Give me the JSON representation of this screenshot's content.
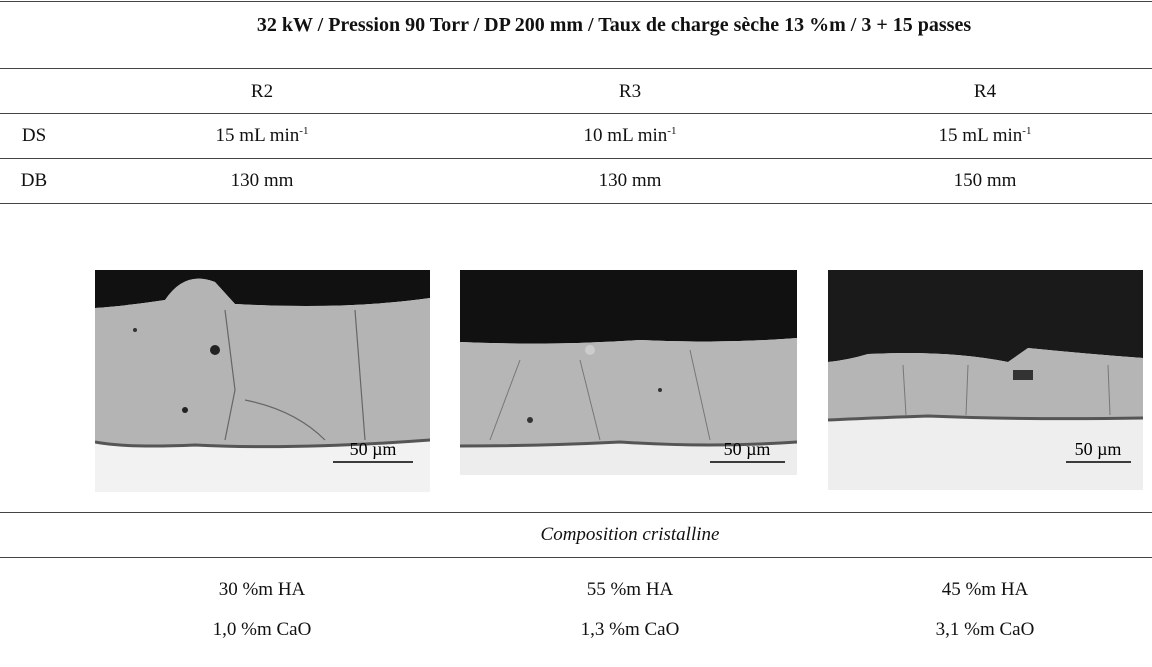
{
  "header": {
    "title": "32 kW / Pression 90 Torr  / DP  200 mm  / Taux de charge sèche 13 %m  / 3 + 15 passes"
  },
  "table": {
    "columns": [
      "R2",
      "R3",
      "R4"
    ],
    "rows": [
      {
        "label": "DS",
        "cells": [
          {
            "text": "15 mL min",
            "sup": "-1"
          },
          {
            "text": "10 mL min",
            "sup": "-1"
          },
          {
            "text": "15 mL min",
            "sup": "-1"
          }
        ]
      },
      {
        "label": "DB",
        "cells": [
          "130 mm",
          "130 mm",
          "150 mm"
        ]
      }
    ],
    "images": [
      {
        "scale": "50 µm"
      },
      {
        "scale": "50 µm"
      },
      {
        "scale": "50 µm"
      }
    ],
    "section": "Composition cristalline",
    "composition": [
      [
        "30 %m HA",
        "55 %m HA",
        "45 %m HA"
      ],
      [
        "1,0 %m CaO",
        "1,3 %m CaO",
        "3,1 %m CaO"
      ]
    ]
  }
}
